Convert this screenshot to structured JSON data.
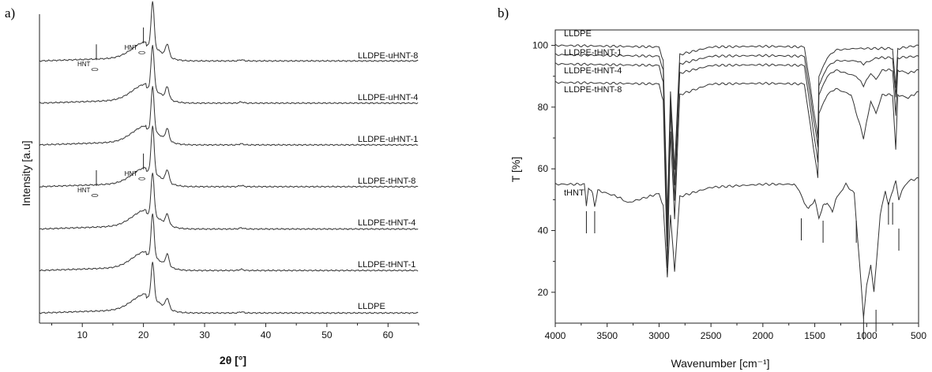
{
  "chart_data": [
    {
      "panel": "a)",
      "type": "line",
      "xlabel": "2θ [°]",
      "ylabel": "Intensity [a.u]",
      "xlim": [
        3,
        65
      ],
      "xticks": [
        10,
        20,
        30,
        40,
        50,
        60
      ],
      "grid": false,
      "peaks_deg": [
        21.5,
        23.9
      ],
      "series": [
        {
          "name": "LLDPE-uHNT-8",
          "offset": 6,
          "baseline": 0.15,
          "p1": 3.2,
          "p2": 0.85
        },
        {
          "name": "LLDPE-uHNT-4",
          "offset": 5,
          "baseline": 0.12,
          "p1": 3.1,
          "p2": 0.8
        },
        {
          "name": "LLDPE-uHNT-1",
          "offset": 4,
          "baseline": 0.12,
          "p1": 3.1,
          "p2": 0.8
        },
        {
          "name": "LLDPE-tHNT-8",
          "offset": 3,
          "baseline": 0.12,
          "p1": 3.3,
          "p2": 0.85
        },
        {
          "name": "LLDPE-tHNT-4",
          "offset": 2,
          "baseline": 0.08,
          "p1": 3.0,
          "p2": 0.7
        },
        {
          "name": "LLDPE-tHNT-1",
          "offset": 1,
          "baseline": 0.1,
          "p1": 3.0,
          "p2": 0.8
        },
        {
          "name": "LLDPE",
          "offset": 0,
          "baseline": 0.05,
          "p1": 2.6,
          "p2": 0.7
        }
      ],
      "annotations": [
        {
          "text": "HNT",
          "x": 12.3,
          "series": "LLDPE-uHNT-8"
        },
        {
          "text": "HNT",
          "x": 20.0,
          "series": "LLDPE-uHNT-8"
        },
        {
          "text": "HNT",
          "x": 12.3,
          "series": "LLDPE-tHNT-8"
        },
        {
          "text": "HNT",
          "x": 20.0,
          "series": "LLDPE-tHNT-8"
        }
      ]
    },
    {
      "panel": "b)",
      "type": "line",
      "xlabel": "Wavenumber [cm⁻¹]",
      "ylabel": "T [%]",
      "xlim": [
        4000,
        500
      ],
      "ylim": [
        10,
        105
      ],
      "xticks": [
        4000,
        3500,
        3000,
        2500,
        2000,
        1500,
        1000,
        500
      ],
      "yticks": [
        20,
        40,
        60,
        80,
        100
      ],
      "grid": false,
      "series": [
        {
          "name": "LLDPE",
          "baseline": 100,
          "points": [
            [
              4000,
              100
            ],
            [
              3000,
              99.5
            ],
            [
              2960,
              95
            ],
            [
              2920,
              45
            ],
            [
              2890,
              85
            ],
            [
              2850,
              60
            ],
            [
              2800,
              97
            ],
            [
              2500,
              99.5
            ],
            [
              2000,
              99.7
            ],
            [
              1600,
              99.5
            ],
            [
              1470,
              70
            ],
            [
              1460,
              90
            ],
            [
              1380,
              96
            ],
            [
              1300,
              98.5
            ],
            [
              1100,
              99
            ],
            [
              750,
              99
            ],
            [
              720,
              86
            ],
            [
              700,
              99
            ],
            [
              500,
              100
            ]
          ]
        },
        {
          "name": "LLDPE-tHNT-1",
          "baseline": 97,
          "points": [
            [
              4000,
              97
            ],
            [
              3000,
              96.5
            ],
            [
              2960,
              92
            ],
            [
              2920,
              40
            ],
            [
              2890,
              82
            ],
            [
              2850,
              55
            ],
            [
              2800,
              94
            ],
            [
              2500,
              96.5
            ],
            [
              2000,
              96.7
            ],
            [
              1600,
              96.5
            ],
            [
              1470,
              67
            ],
            [
              1460,
              87
            ],
            [
              1380,
              93
            ],
            [
              1300,
              95
            ],
            [
              1100,
              95
            ],
            [
              1030,
              94
            ],
            [
              900,
              96
            ],
            [
              750,
              96
            ],
            [
              720,
              83
            ],
            [
              700,
              96
            ],
            [
              500,
              96.5
            ]
          ]
        },
        {
          "name": "LLDPE-tHNT-4",
          "baseline": 94,
          "points": [
            [
              4000,
              94
            ],
            [
              3000,
              93.5
            ],
            [
              2960,
              88
            ],
            [
              2920,
              35
            ],
            [
              2890,
              79
            ],
            [
              2850,
              50
            ],
            [
              2800,
              91
            ],
            [
              2500,
              93.5
            ],
            [
              2000,
              93.7
            ],
            [
              1600,
              93.5
            ],
            [
              1470,
              62
            ],
            [
              1460,
              84
            ],
            [
              1380,
              90
            ],
            [
              1300,
              92
            ],
            [
              1100,
              90
            ],
            [
              1030,
              87
            ],
            [
              960,
              91
            ],
            [
              910,
              89
            ],
            [
              850,
              92
            ],
            [
              750,
              92
            ],
            [
              720,
              77
            ],
            [
              700,
              92
            ],
            [
              600,
              91
            ],
            [
              500,
              92
            ]
          ]
        },
        {
          "name": "LLDPE-tHNT-8",
          "baseline": 90,
          "points": [
            [
              4000,
              88
            ],
            [
              3000,
              87.5
            ],
            [
              2960,
              82
            ],
            [
              2920,
              28
            ],
            [
              2890,
              72
            ],
            [
              2850,
              44
            ],
            [
              2800,
              84
            ],
            [
              2500,
              87.5
            ],
            [
              2000,
              87.7
            ],
            [
              1600,
              87.5
            ],
            [
              1470,
              57
            ],
            [
              1460,
              78
            ],
            [
              1380,
              84
            ],
            [
              1300,
              86
            ],
            [
              1150,
              84
            ],
            [
              1030,
              70
            ],
            [
              960,
              82
            ],
            [
              910,
              78
            ],
            [
              850,
              84
            ],
            [
              750,
              84
            ],
            [
              720,
              66
            ],
            [
              700,
              84
            ],
            [
              600,
              83
            ],
            [
              500,
              85
            ]
          ]
        },
        {
          "name": "tHNT",
          "baseline": 55,
          "points": [
            [
              4000,
              55
            ],
            [
              3720,
              55
            ],
            [
              3700,
              48
            ],
            [
              3680,
              54
            ],
            [
              3640,
              52
            ],
            [
              3620,
              48
            ],
            [
              3590,
              53
            ],
            [
              3400,
              51
            ],
            [
              3300,
              49
            ],
            [
              3100,
              51
            ],
            [
              3000,
              52
            ],
            [
              2960,
              48
            ],
            [
              2920,
              25
            ],
            [
              2890,
              45
            ],
            [
              2850,
              27
            ],
            [
              2800,
              51
            ],
            [
              2500,
              54
            ],
            [
              2000,
              55
            ],
            [
              1700,
              55
            ],
            [
              1650,
              53
            ],
            [
              1600,
              49
            ],
            [
              1560,
              47
            ],
            [
              1500,
              50
            ],
            [
              1460,
              44
            ],
            [
              1420,
              48
            ],
            [
              1380,
              49
            ],
            [
              1330,
              46
            ],
            [
              1300,
              50
            ],
            [
              1200,
              55
            ],
            [
              1120,
              52
            ],
            [
              1070,
              30
            ],
            [
              1030,
              12
            ],
            [
              1000,
              22
            ],
            [
              960,
              29
            ],
            [
              930,
              20
            ],
            [
              910,
              28
            ],
            [
              870,
              45
            ],
            [
              820,
              53
            ],
            [
              790,
              48
            ],
            [
              760,
              52
            ],
            [
              720,
              56
            ],
            [
              690,
              50
            ],
            [
              660,
              53
            ],
            [
              600,
              56
            ],
            [
              500,
              57
            ]
          ]
        }
      ],
      "series_labels": [
        "LLDPE",
        "LLDPE-tHNT-1",
        "LLDPE-tHNT-4",
        "LLDPE-tHNT-8",
        "tHNT"
      ],
      "marker_positions_cm": [
        3700,
        3620,
        1630,
        1420,
        1100,
        1030,
        910,
        790,
        750,
        690
      ]
    }
  ]
}
